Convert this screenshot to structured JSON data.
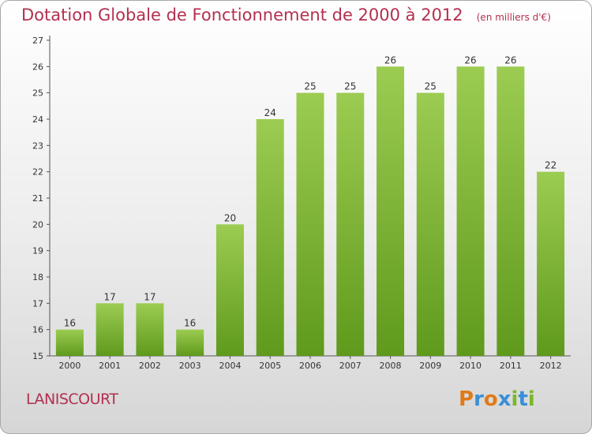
{
  "header": {
    "title": "Dotation Globale de Fonctionnement de 2000 à 2012",
    "unit": "(en milliers d'€)"
  },
  "footer": {
    "commune": "LANISCOURT",
    "logo_text": "Proxiti",
    "logo_colors": [
      "#e07b1a",
      "#3a8fd6",
      "#e07b1a",
      "#3a8fd6",
      "#7ab828",
      "#3a8fd6",
      "#7ab828"
    ]
  },
  "colors": {
    "bar_top": "#9ccc52",
    "bar_bottom": "#5f9a1c",
    "title": "#b3304f"
  },
  "chart_data": {
    "type": "bar",
    "title": "Dotation Globale de Fonctionnement de 2000 à 2012",
    "subtitle": "(en milliers d'€)",
    "xlabel": "",
    "ylabel": "",
    "categories": [
      "2000",
      "2001",
      "2002",
      "2003",
      "2004",
      "2005",
      "2006",
      "2007",
      "2008",
      "2009",
      "2010",
      "2011",
      "2012"
    ],
    "values": [
      16,
      17,
      17,
      16,
      20,
      24,
      25,
      25,
      26,
      25,
      26,
      26,
      22
    ],
    "ylim": [
      15,
      27
    ],
    "yticks": [
      15,
      16,
      17,
      18,
      19,
      20,
      21,
      22,
      23,
      24,
      25,
      26,
      27
    ],
    "grid": "none",
    "legend": "none"
  }
}
